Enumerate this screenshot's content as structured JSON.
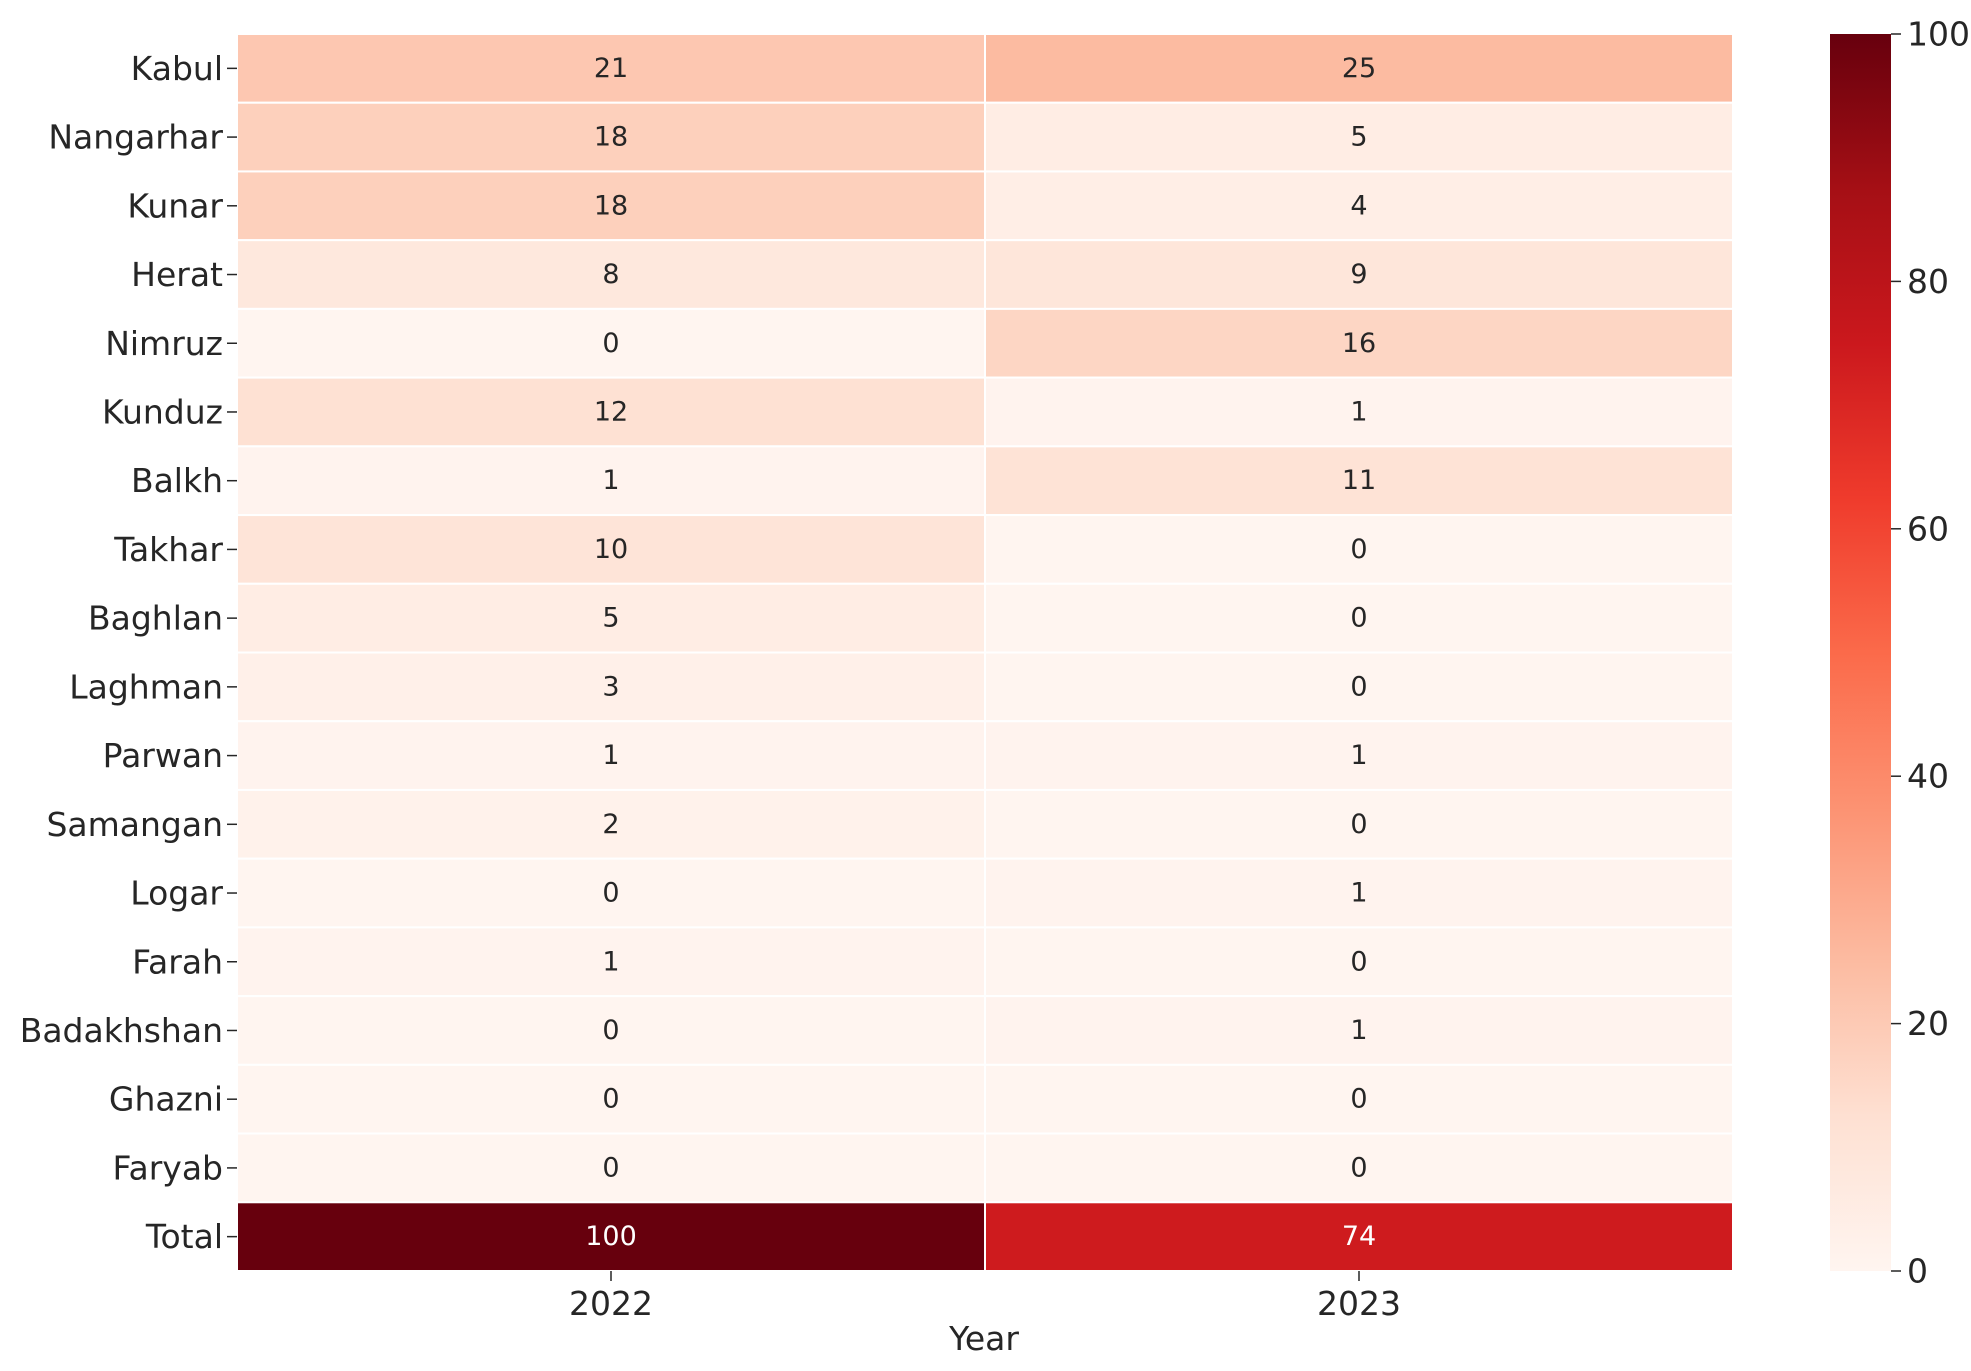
{
  "chart_data": {
    "type": "heatmap",
    "title": "",
    "xlabel": "Year",
    "ylabel": "",
    "columns": [
      "2022",
      "2023"
    ],
    "rows": [
      "Kabul",
      "Nangarhar",
      "Kunar",
      "Herat",
      "Nimruz",
      "Kunduz",
      "Balkh",
      "Takhar",
      "Baghlan",
      "Laghman",
      "Parwan",
      "Samangan",
      "Logar",
      "Farah",
      "Badakhshan",
      "Ghazni",
      "Faryab",
      "Total"
    ],
    "values": [
      [
        21,
        25
      ],
      [
        18,
        5
      ],
      [
        18,
        4
      ],
      [
        8,
        9
      ],
      [
        0,
        16
      ],
      [
        12,
        1
      ],
      [
        1,
        11
      ],
      [
        10,
        0
      ],
      [
        5,
        0
      ],
      [
        3,
        0
      ],
      [
        1,
        1
      ],
      [
        2,
        0
      ],
      [
        0,
        1
      ],
      [
        1,
        0
      ],
      [
        0,
        1
      ],
      [
        0,
        0
      ],
      [
        0,
        0
      ],
      [
        100,
        74
      ]
    ],
    "colormap": "Reds",
    "colorbar": {
      "range": [
        0,
        100
      ],
      "ticks": [
        "0",
        "20",
        "40",
        "60",
        "80",
        "100"
      ]
    },
    "annotations": true,
    "grid": false
  }
}
